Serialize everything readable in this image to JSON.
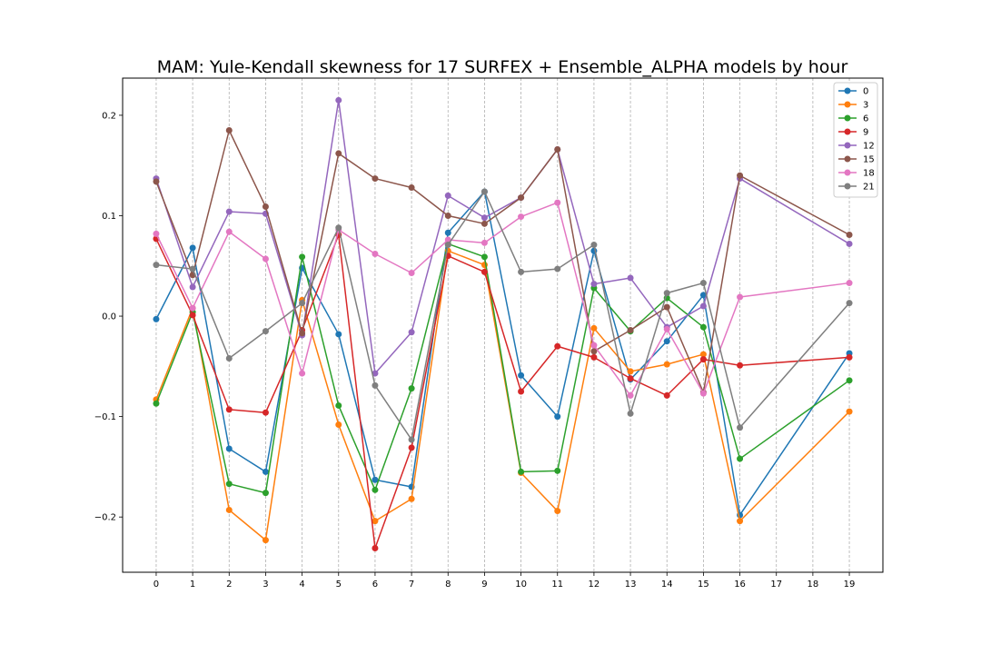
{
  "chart_data": {
    "type": "line",
    "title": "MAM: Yule-Kendall skewness for 17 SURFEX + Ensemble_ALPHA models by hour",
    "xlabel": "",
    "ylabel": "",
    "x": [
      0,
      1,
      2,
      3,
      4,
      5,
      6,
      7,
      8,
      9,
      10,
      11,
      12,
      13,
      14,
      15,
      16,
      19
    ],
    "xticks": [
      "0",
      "1",
      "2",
      "3",
      "4",
      "5",
      "6",
      "7",
      "8",
      "9",
      "10",
      "11",
      "12",
      "13",
      "14",
      "15",
      "16",
      "17",
      "18",
      "19"
    ],
    "yticks": [
      "−0.2",
      "−0.1",
      "0.0",
      "0.1",
      "0.2"
    ],
    "ylim": [
      -0.255,
      0.237
    ],
    "xlim": [
      -0.92,
      19.92
    ],
    "grid": "vertical dashed",
    "legend_position": "top-right",
    "series": [
      {
        "name": "0",
        "color": "#1f77b4",
        "values": [
          -0.003,
          0.068,
          -0.132,
          -0.155,
          0.048,
          -0.018,
          -0.163,
          -0.17,
          0.083,
          0.124,
          -0.059,
          -0.1,
          0.065,
          -0.063,
          -0.025,
          0.021,
          -0.198,
          -0.037
        ]
      },
      {
        "name": "3",
        "color": "#ff7f0e",
        "values": [
          -0.083,
          0.008,
          -0.193,
          -0.223,
          0.016,
          -0.108,
          -0.204,
          -0.182,
          0.065,
          0.051,
          -0.156,
          -0.194,
          -0.012,
          -0.055,
          -0.048,
          -0.038,
          -0.204,
          -0.095
        ]
      },
      {
        "name": "6",
        "color": "#2ca02c",
        "values": [
          -0.087,
          0.004,
          -0.167,
          -0.176,
          0.059,
          -0.089,
          -0.173,
          -0.072,
          0.072,
          0.059,
          -0.155,
          -0.154,
          0.028,
          -0.015,
          0.018,
          -0.011,
          -0.142,
          -0.064
        ]
      },
      {
        "name": "9",
        "color": "#d62728",
        "values": [
          0.077,
          0.001,
          -0.093,
          -0.096,
          -0.014,
          0.081,
          -0.231,
          -0.131,
          0.06,
          0.044,
          -0.075,
          -0.03,
          -0.041,
          -0.062,
          -0.079,
          -0.043,
          -0.049,
          -0.041
        ]
      },
      {
        "name": "12",
        "color": "#9467bd",
        "values": [
          0.137,
          0.029,
          0.104,
          0.102,
          -0.019,
          0.215,
          -0.057,
          -0.016,
          0.12,
          0.098,
          0.118,
          0.166,
          0.032,
          0.038,
          -0.011,
          0.01,
          0.137,
          0.072
        ]
      },
      {
        "name": "15",
        "color": "#8c564b",
        "values": [
          0.134,
          0.041,
          0.185,
          0.109,
          -0.017,
          0.162,
          0.137,
          0.128,
          0.1,
          0.092,
          0.118,
          0.166,
          -0.035,
          -0.014,
          0.009,
          -0.076,
          0.14,
          0.081
        ]
      },
      {
        "name": "18",
        "color": "#e377c2",
        "values": [
          0.082,
          0.008,
          0.084,
          0.057,
          -0.057,
          0.086,
          0.062,
          0.043,
          0.076,
          0.073,
          0.099,
          0.113,
          -0.029,
          -0.079,
          -0.013,
          -0.077,
          0.019,
          0.033
        ]
      },
      {
        "name": "21",
        "color": "#7f7f7f",
        "values": [
          0.051,
          0.047,
          -0.042,
          -0.015,
          0.013,
          0.088,
          -0.069,
          -0.123,
          0.071,
          0.124,
          0.044,
          0.047,
          0.071,
          -0.097,
          0.023,
          0.033,
          -0.111,
          0.013
        ]
      }
    ]
  }
}
